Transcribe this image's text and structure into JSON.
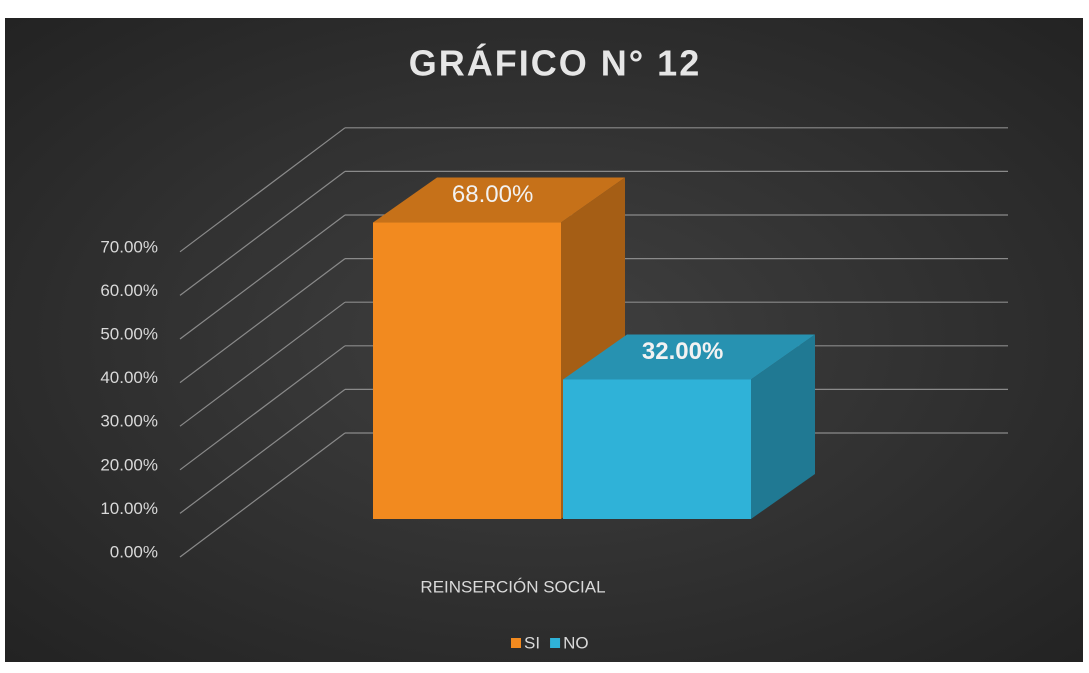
{
  "chart_data": {
    "type": "bar3d",
    "title": "GRÁFICO N° 12",
    "categories": [
      "REINSERCIÓN SOCIAL"
    ],
    "series": [
      {
        "name": "SI",
        "color": "#f28a1f",
        "values": [
          68
        ],
        "value_labels": [
          "68.00%"
        ]
      },
      {
        "name": "NO",
        "color": "#2fb2d8",
        "values": [
          32
        ],
        "value_labels": [
          "32.00%"
        ]
      }
    ],
    "ylim": [
      0,
      70
    ],
    "yticks": [
      {
        "value": 0,
        "label": "0.00%"
      },
      {
        "value": 10,
        "label": "10.00%"
      },
      {
        "value": 20,
        "label": "20.00%"
      },
      {
        "value": 30,
        "label": "30.00%"
      },
      {
        "value": 40,
        "label": "40.00%"
      },
      {
        "value": 50,
        "label": "50.00%"
      },
      {
        "value": 60,
        "label": "60.00%"
      },
      {
        "value": 70,
        "label": "70.00%"
      }
    ],
    "grid": true,
    "legend": "bottom"
  }
}
